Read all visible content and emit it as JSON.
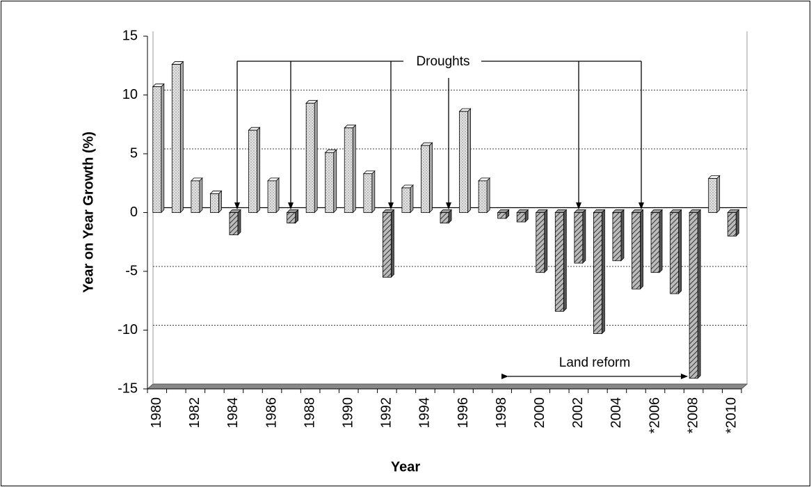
{
  "chart_data": {
    "type": "bar",
    "y_label": "Year on Year Growth (%)",
    "x_label": "Year",
    "categories": [
      "1980",
      null,
      "1982",
      null,
      "1984",
      null,
      "1986",
      null,
      "1988",
      null,
      "1990",
      null,
      "1992",
      null,
      "1994",
      null,
      "1996",
      null,
      "1998",
      null,
      "2000",
      null,
      "2002",
      null,
      "2004",
      null,
      "*2006",
      null,
      "*2008",
      null,
      "*2010"
    ],
    "values": [
      10.7,
      12.6,
      2.7,
      1.6,
      -1.9,
      7.0,
      2.7,
      -0.9,
      9.3,
      5.1,
      7.2,
      3.3,
      -5.5,
      2.1,
      5.7,
      -0.9,
      8.6,
      2.7,
      -0.5,
      -0.8,
      -5.1,
      -8.4,
      -4.3,
      -10.3,
      -4.1,
      -6.5,
      -5.1,
      -6.9,
      -14.1,
      2.9,
      -2.0
    ],
    "ylim": [
      -15,
      15
    ],
    "yticks": [
      -15,
      -10,
      -5,
      0,
      5,
      10,
      15
    ],
    "grid": true,
    "annotations": [
      "Droughts",
      "Land reform"
    ]
  }
}
